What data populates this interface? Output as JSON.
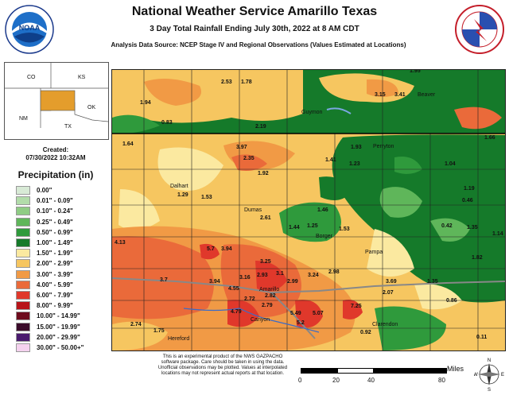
{
  "header": {
    "title": "National Weather Service Amarillo Texas",
    "subtitle": "3 Day Total Rainfall Ending July 30th, 2022 at 8 AM CDT",
    "source": "Analysis Data Source: NCEP Stage IV and Regional Observations (Values Estimated at Locations)"
  },
  "logos": {
    "left": {
      "center_text": "NOAA",
      "ring_text": "NATIONAL OCEANIC AND ATMOSPHERIC ADMINISTRATION · U.S. DEPARTMENT OF COMMERCE"
    },
    "right": {
      "ring_text": "NATIONAL WEATHER SERVICE · U.S. DEPARTMENT OF COMMERCE"
    }
  },
  "inset": {
    "states": [
      "CO",
      "KS",
      "NM",
      "OK",
      "TX"
    ]
  },
  "created": {
    "label": "Created:",
    "date": "07/30/2022 10:32AM"
  },
  "legend": {
    "title": "Precipitation (in)",
    "items": [
      {
        "label": "0.00\"",
        "color": "#d8ead6"
      },
      {
        "label": "0.01\" - 0.09\"",
        "color": "#b2dcaa"
      },
      {
        "label": "0.10\" - 0.24\"",
        "color": "#8fcc84"
      },
      {
        "label": "0.25\" - 0.49\"",
        "color": "#5fb65a"
      },
      {
        "label": "0.50\" - 0.99\"",
        "color": "#2f9a3c"
      },
      {
        "label": "1.00\" - 1.49\"",
        "color": "#157a2a"
      },
      {
        "label": "1.50\" - 1.99\"",
        "color": "#fbe9a0"
      },
      {
        "label": "2.00\" - 2.99\"",
        "color": "#f6c660"
      },
      {
        "label": "3.00\" - 3.99\"",
        "color": "#f19a45"
      },
      {
        "label": "4.00\" - 5.99\"",
        "color": "#ea6a3a"
      },
      {
        "label": "6.00\" - 7.99\"",
        "color": "#e0382b"
      },
      {
        "label": "8.00\" - 9.99\"",
        "color": "#b8141a"
      },
      {
        "label": "10.00\" - 14.99\"",
        "color": "#6e0b1d"
      },
      {
        "label": "15.00\" - 19.99\"",
        "color": "#3a0b2a"
      },
      {
        "label": "20.00\" - 29.99\"",
        "color": "#4a1a6e"
      },
      {
        "label": "30.00\" - 50.00+\"",
        "color": "#f5d2ef"
      }
    ]
  },
  "map": {
    "cities": [
      "Guymon",
      "Beaver",
      "Perryton",
      "Dalhart",
      "Dumas",
      "Borger",
      "Pampa",
      "Amarillo",
      "Canyon",
      "Hereford",
      "Clarendon"
    ],
    "values": [
      "1.95",
      "2.53",
      "1.78",
      "3.15",
      "3.41",
      "1.94",
      "0.83",
      "2.19",
      "1.66",
      "1.64",
      "3.97",
      "2.35",
      "1.93",
      "1.41",
      "1.23",
      "1.04",
      "1.92",
      "1.29",
      "1.53",
      "1.19",
      "0.46",
      "2.61",
      "1.46",
      "0.42",
      "1.35",
      "1.44",
      "1.25",
      "1.53",
      "1.14",
      "4.13",
      "5.7",
      "3.94",
      "3.25",
      "1.82",
      "2.98",
      "3.7",
      "3.94",
      "3.16",
      "4.55",
      "2.93",
      "3.1",
      "2.99",
      "3.24",
      "3.69",
      "1.35",
      "2.72",
      "2.82",
      "2.07",
      "4.79",
      "2.79",
      "0.86",
      "5.49",
      "5.07",
      "7.25",
      "2.74",
      "1.75",
      "5.2",
      "0.92",
      "0.11"
    ]
  },
  "disclaimer": {
    "line1": "This is an experimental product of the NWS GAZPACHO",
    "line2": "software package. Care should be taken in using the data.",
    "line3": "Unofficial observations may be plotted. Values at interpolated",
    "line4": "locations may not represent actual reports at that location."
  },
  "scale": {
    "unit": "Miles",
    "ticks": [
      "0",
      "20",
      "40",
      "80"
    ]
  },
  "compass": {
    "n": "N",
    "s": "S",
    "e": "E",
    "w": "W"
  }
}
